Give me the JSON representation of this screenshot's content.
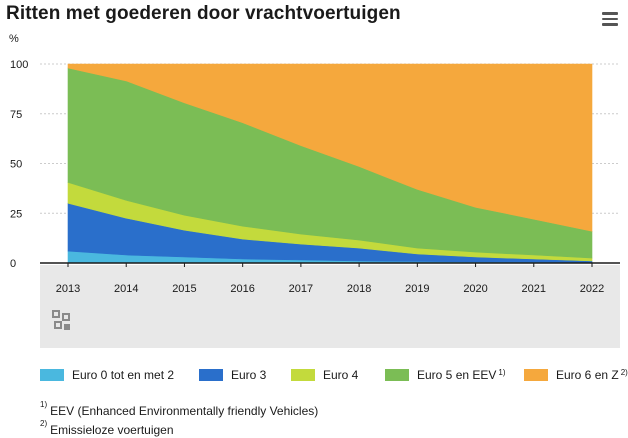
{
  "title": "Ritten met goederen door vrachtvoertuigen",
  "menu_icon": "hamburger-menu-icon",
  "logo_icon": "cbs-logo-icon",
  "chart_data": {
    "type": "area",
    "stacked": true,
    "title": "Ritten met goederen door vrachtvoertuigen",
    "ylabel": "%",
    "xlabel": "",
    "ylim": [
      0,
      100
    ],
    "yticks": [
      "0",
      "25",
      "50",
      "75",
      "100"
    ],
    "categories": [
      "2013",
      "2014",
      "2015",
      "2016",
      "2017",
      "2018",
      "2019",
      "2020",
      "2021",
      "2022"
    ],
    "series": [
      {
        "name": "Euro 0 tot en met 2",
        "note": "",
        "color": "#4ab8df",
        "values": [
          6,
          4,
          3,
          2,
          1.5,
          1,
          0.8,
          0.6,
          0.5,
          0.4
        ]
      },
      {
        "name": "Euro 3",
        "note": "",
        "color": "#2a6fcb",
        "values": [
          24,
          18.5,
          13.5,
          10,
          8,
          6.5,
          3.7,
          2.4,
          1.5,
          0.6
        ]
      },
      {
        "name": "Euro 4",
        "note": "",
        "color": "#c3da3c",
        "values": [
          10.5,
          9,
          7.5,
          6.5,
          5,
          4,
          3,
          2.5,
          2,
          1.5
        ]
      },
      {
        "name": "Euro 5 en EEV",
        "note": "1)",
        "color": "#7bbd55",
        "values": [
          57.5,
          60,
          56.5,
          52,
          44.5,
          37,
          29.5,
          22.5,
          18,
          13.5
        ]
      },
      {
        "name": "Euro 6 en Z",
        "note": "2)",
        "color": "#f5a83d",
        "values": [
          2,
          8.5,
          19.5,
          29.5,
          41,
          51.5,
          63,
          72,
          78,
          84
        ]
      }
    ],
    "legend_placement": "bottom",
    "grid": true
  },
  "footnotes": [
    {
      "marker": "1)",
      "text": "EEV (Enhanced Environmentally friendly Vehicles)"
    },
    {
      "marker": "2)",
      "text": "Emissieloze voertuigen"
    }
  ]
}
